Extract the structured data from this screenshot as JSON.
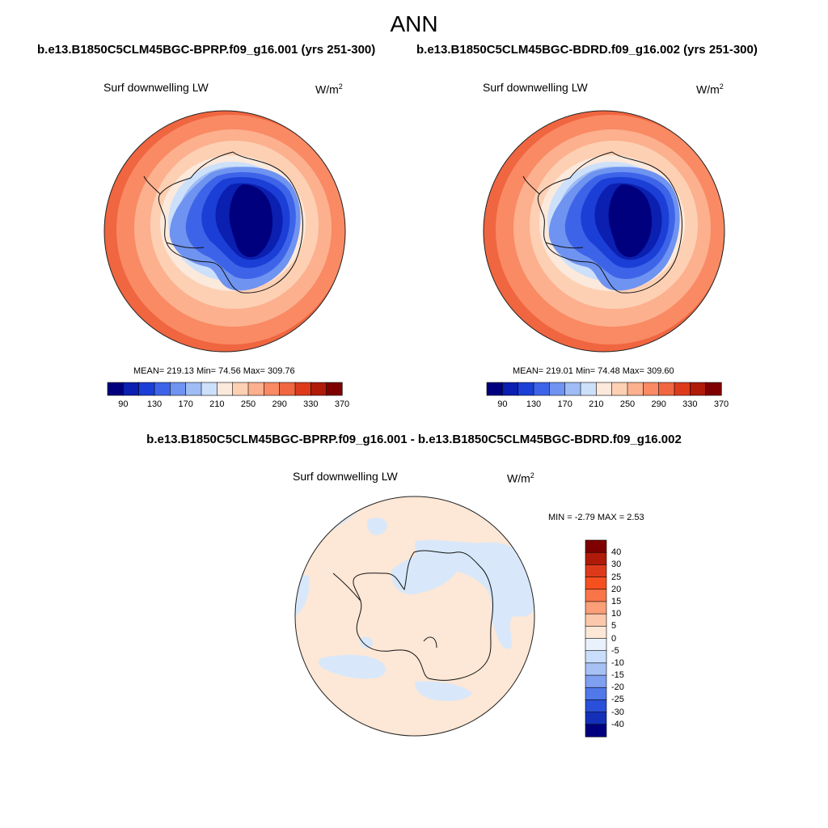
{
  "main_title": "ANN",
  "panels": [
    {
      "case_title": "b.e13.B1850C5CLM45BGC-BPRP.f09_g16.001 (yrs 251-300)",
      "variable": "Surf downwelling LW",
      "units_base": "W/m",
      "units_exp": "2",
      "stats": "MEAN= 219.13  Min=  74.56  Max= 309.76",
      "colorbar_ticks": [
        "90",
        "130",
        "170",
        "210",
        "250",
        "290",
        "330",
        "370"
      ]
    },
    {
      "case_title": "b.e13.B1850C5CLM45BGC-BDRD.f09_g16.002 (yrs 251-300)",
      "variable": "Surf downwelling LW",
      "units_base": "W/m",
      "units_exp": "2",
      "stats": "MEAN= 219.01  Min=  74.48  Max= 309.60",
      "colorbar_ticks": [
        "90",
        "130",
        "170",
        "210",
        "250",
        "290",
        "330",
        "370"
      ]
    }
  ],
  "difference": {
    "title": "b.e13.B1850C5CLM45BGC-BPRP.f09_g16.001 - b.e13.B1850C5CLM45BGC-BDRD.f09_g16.002",
    "variable": "Surf downwelling LW",
    "units_base": "W/m",
    "units_exp": "2",
    "stats": "MIN =  -2.79 MAX =   2.53",
    "colorbar_ticks": [
      "40",
      "30",
      "25",
      "20",
      "15",
      "10",
      "5",
      "0",
      "-5",
      "-10",
      "-15",
      "-20",
      "-25",
      "-30",
      "-40"
    ]
  },
  "colors": {
    "field_scale": [
      "#00007e",
      "#0b1fb0",
      "#1b3fd6",
      "#3d64e8",
      "#6f93f0",
      "#9fbcf5",
      "#cde0fa",
      "#fbe9dc",
      "#fdd0b4",
      "#fcb08e",
      "#f98a64",
      "#f06640",
      "#dd3a1c",
      "#b01a08",
      "#7e0000"
    ],
    "diff_scale": [
      "#7e0000",
      "#b01a08",
      "#dd3a1c",
      "#f65020",
      "#f97548",
      "#fb9f78",
      "#fcc8ab",
      "#fde7d6",
      "#e9f1fc",
      "#c9defa",
      "#a7c1f4",
      "#7f9ff0",
      "#5078e8",
      "#2a4fd8",
      "#1430b8",
      "#00007e"
    ],
    "diff_positive": "#fde7d6",
    "diff_negative": "#d8e8fa"
  }
}
